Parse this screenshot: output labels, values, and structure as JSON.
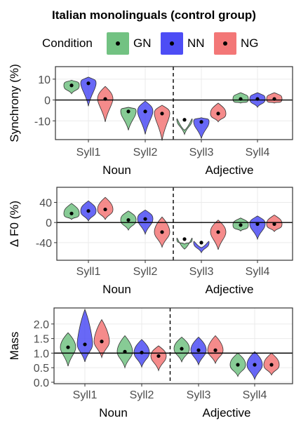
{
  "title": "Italian monolinguals (control group)",
  "legend": {
    "title": "Condition",
    "items": [
      {
        "label": "GN",
        "color": "#72c282"
      },
      {
        "label": "NN",
        "color": "#4d4df5"
      },
      {
        "label": "NG",
        "color": "#f37777"
      }
    ]
  },
  "chart_data": [
    {
      "type": "violin",
      "ylabel": "Synchrony (%)",
      "ylim": [
        -19,
        16
      ],
      "yticks": [
        10,
        0,
        -10
      ],
      "reference_line": 0,
      "categories": [
        "Syll1",
        "Syll2",
        "Syll3",
        "Syll4"
      ],
      "groups": [
        {
          "label": "Noun",
          "categories": [
            "Syll1",
            "Syll2"
          ]
        },
        {
          "label": "Adjective",
          "categories": [
            "Syll3",
            "Syll4"
          ]
        }
      ],
      "series": [
        {
          "name": "GN",
          "medians": [
            7,
            -5.5,
            -9.5,
            0.5
          ]
        },
        {
          "name": "NN",
          "medians": [
            8,
            -5.5,
            -10.5,
            0.5
          ]
        },
        {
          "name": "NG",
          "medians": [
            0.5,
            -6.5,
            -6.5,
            0.5
          ]
        }
      ]
    },
    {
      "type": "violin",
      "ylabel": "Δ F0 (%)",
      "ylim": [
        -75,
        70
      ],
      "yticks": [
        40,
        0,
        -40
      ],
      "reference_line": 0,
      "categories": [
        "Syll1",
        "Syll2",
        "Syll3",
        "Syll4"
      ],
      "groups": [
        {
          "label": "Noun",
          "categories": [
            "Syll1",
            "Syll2"
          ]
        },
        {
          "label": "Adjective",
          "categories": [
            "Syll3",
            "Syll4"
          ]
        }
      ],
      "series": [
        {
          "name": "GN",
          "medians": [
            18,
            5,
            -33,
            -5
          ]
        },
        {
          "name": "NN",
          "medians": [
            23,
            7,
            -40,
            -3
          ]
        },
        {
          "name": "NG",
          "medians": [
            26,
            -19,
            -19,
            -3
          ]
        }
      ]
    },
    {
      "type": "violin",
      "ylabel": "Mass",
      "ylim": [
        -0.05,
        2.55
      ],
      "yticks": [
        2.0,
        1.5,
        1.0,
        0.5,
        0.0
      ],
      "reference_line": 1.0,
      "categories": [
        "Syll1",
        "Syll2",
        "Syll3",
        "Syll4"
      ],
      "groups": [
        {
          "label": "Noun",
          "categories": [
            "Syll1",
            "Syll2"
          ]
        },
        {
          "label": "Adjective",
          "categories": [
            "Syll3",
            "Syll4"
          ]
        }
      ],
      "series": [
        {
          "name": "GN",
          "medians": [
            1.2,
            1.05,
            1.15,
            0.6
          ]
        },
        {
          "name": "NN",
          "medians": [
            1.3,
            1.02,
            1.1,
            0.6
          ]
        },
        {
          "name": "NG",
          "medians": [
            1.4,
            0.9,
            1.1,
            0.6
          ]
        }
      ]
    }
  ]
}
